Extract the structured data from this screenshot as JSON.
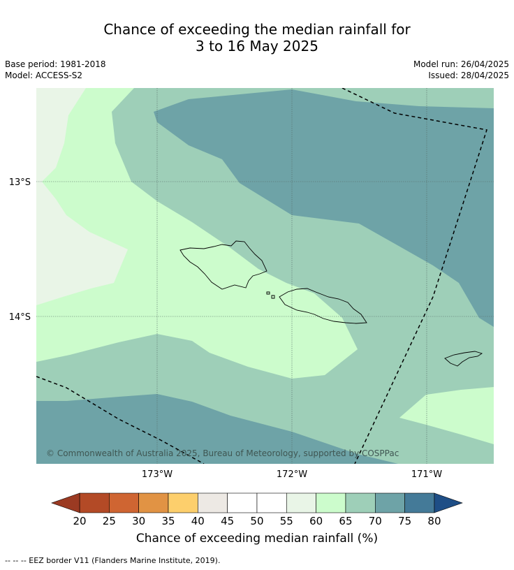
{
  "title": {
    "line1": "Chance of exceeding the median rainfall for",
    "line2": "3 to 16 May 2025"
  },
  "meta": {
    "base_period": "Base period: 1981-2018",
    "model": "Model: ACCESS-S2",
    "model_run": "Model run: 26/04/2025",
    "issued": "Issued: 28/04/2025"
  },
  "map": {
    "lat_labels": [
      "13°S",
      "14°S"
    ],
    "lon_labels": [
      "173°W",
      "172°W",
      "171°W"
    ],
    "copyright": "© Commonwealth of Australia 2025, Bureau of Meteorology, supported by COSPPac"
  },
  "colorbar": {
    "title": "Chance of exceeding median rainfall (%)",
    "ticks": [
      "20",
      "25",
      "30",
      "35",
      "40",
      "45",
      "50",
      "55",
      "60",
      "65",
      "70",
      "75",
      "80"
    ],
    "colors": {
      "below20": "#9b3a22",
      "c20_25": "#b34a26",
      "c25_30": "#cf6532",
      "c30_35": "#e19344",
      "c35_40": "#fdcf6c",
      "c40_45": "#ede9e4",
      "c45_50": "#ffffff",
      "c50_55": "#ffffff",
      "c55_60": "#e9f5e7",
      "c60_65": "#ccfccc",
      "c65_70": "#9ecfb8",
      "c70_75": "#6ea3a7",
      "c75_80": "#447a98",
      "above80": "#1e4e86"
    }
  },
  "footnote": "--  --  -- EEZ border V11 (Flanders Marine Institute, 2019)."
}
